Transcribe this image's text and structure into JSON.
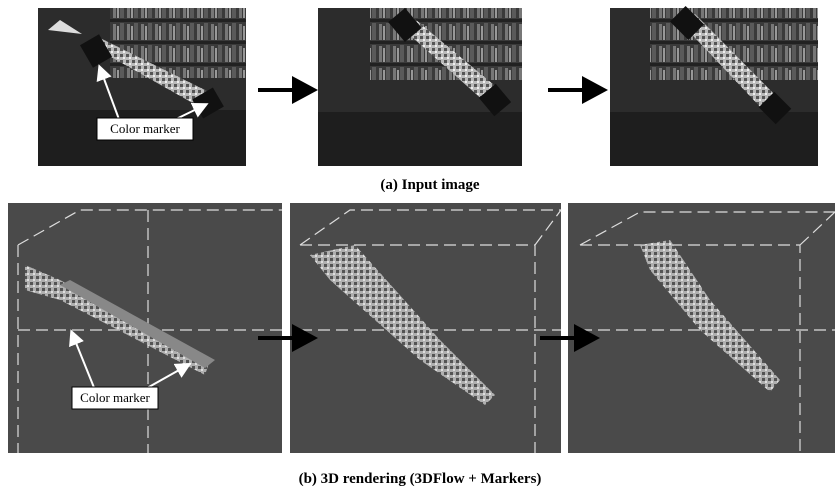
{
  "panel_a": {
    "marker_label": "Color marker",
    "caption": "(a) Input image"
  },
  "panel_b": {
    "marker_label": "Color marker",
    "caption": "(b) 3D rendering (3DFlow + Markers)"
  }
}
